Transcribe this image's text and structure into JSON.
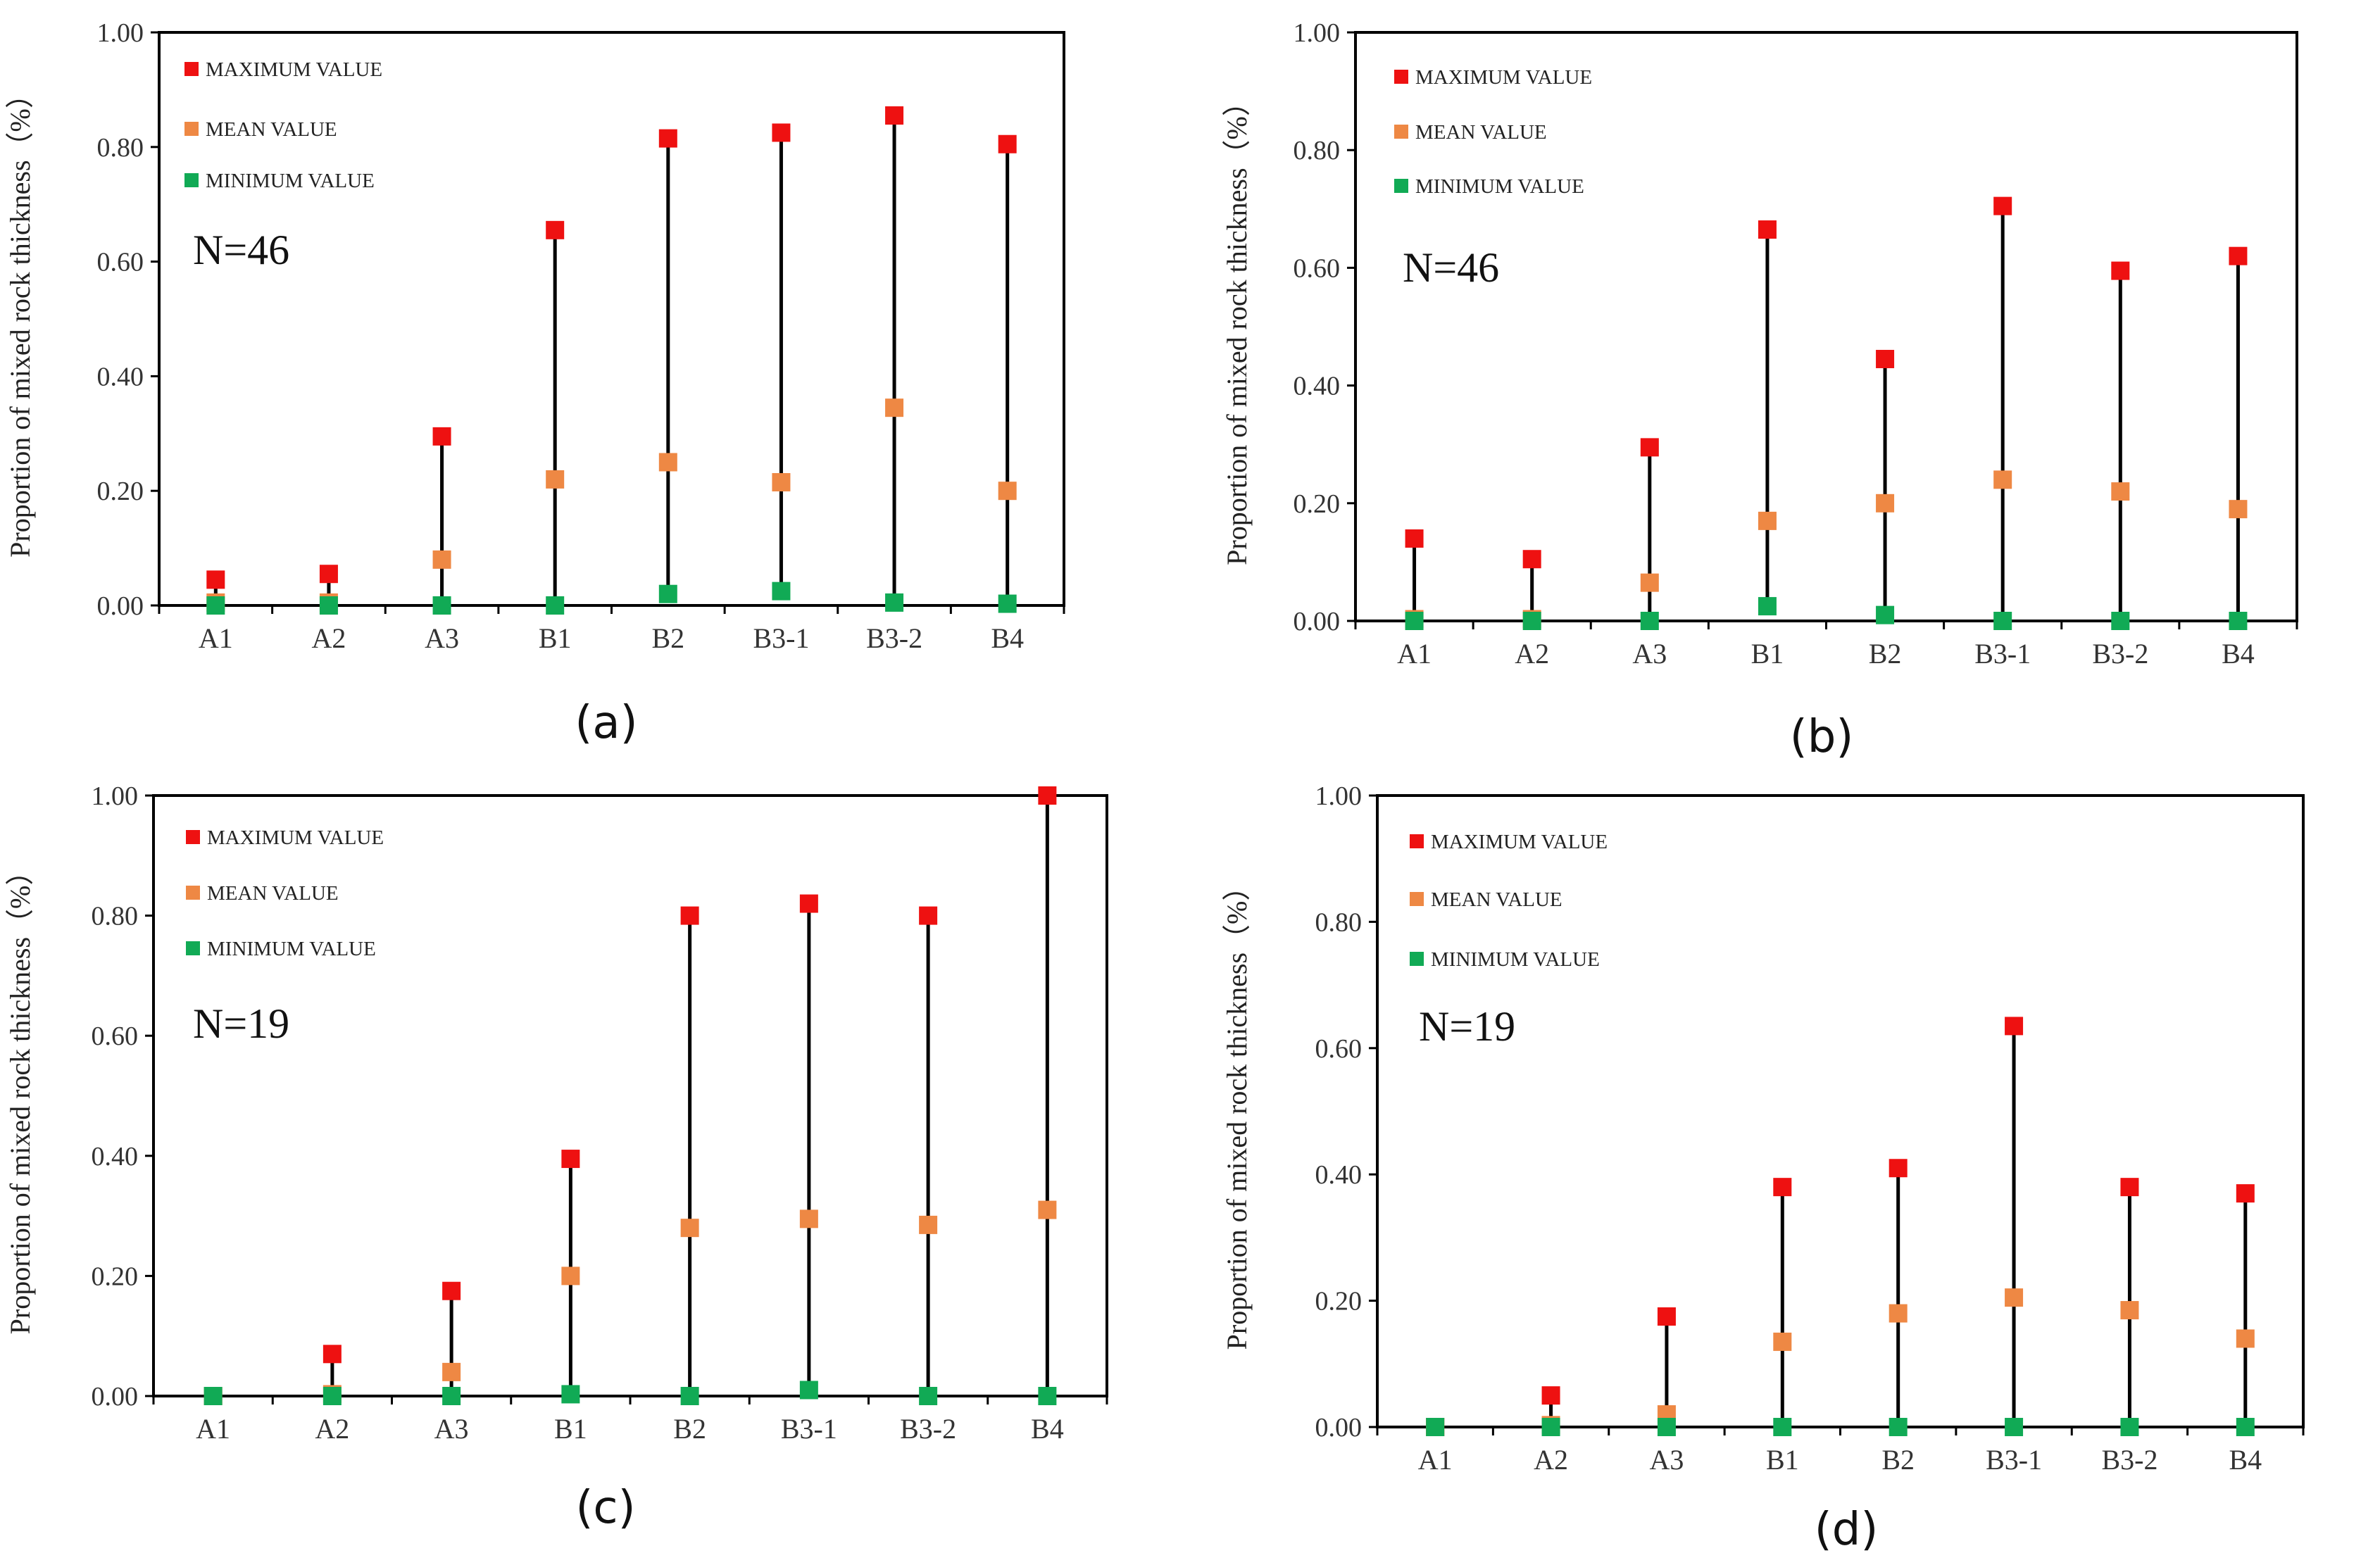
{
  "figure": {
    "colors": {
      "max": "#ee1111",
      "mean": "#ee8844",
      "min": "#11aa55",
      "stem": "#000000"
    }
  },
  "chart_data": [
    {
      "type": "scatter",
      "panel_label": "(a)",
      "annotation": "N=46",
      "ylabel": "Proportion of mixed rock thickness（%）",
      "ylim": [
        0,
        1
      ],
      "yticks": [
        "0.00",
        "0.20",
        "0.40",
        "0.60",
        "0.80",
        "1.00"
      ],
      "categories": [
        "A1",
        "A2",
        "A3",
        "B1",
        "B2",
        "B3-1",
        "B3-2",
        "B4"
      ],
      "series": [
        {
          "name": "MAXIMUM VALUE",
          "values": [
            0.045,
            0.055,
            0.295,
            0.655,
            0.815,
            0.825,
            0.855,
            0.805
          ]
        },
        {
          "name": "MEAN VALUE",
          "values": [
            0.005,
            0.005,
            0.08,
            0.22,
            0.25,
            0.215,
            0.345,
            0.2
          ]
        },
        {
          "name": "MINIMUM VALUE",
          "values": [
            0,
            0,
            0,
            0,
            0.02,
            0.025,
            0.005,
            0.003
          ]
        }
      ]
    },
    {
      "type": "scatter",
      "panel_label": "(b)",
      "annotation": "N=46",
      "ylabel": "Proportion of mixed rock thickness（%）",
      "ylim": [
        0,
        1
      ],
      "yticks": [
        "0.00",
        "0.20",
        "0.40",
        "0.60",
        "0.80",
        "1.00"
      ],
      "categories": [
        "A1",
        "A2",
        "A3",
        "B1",
        "B2",
        "B3-1",
        "B3-2",
        "B4"
      ],
      "series": [
        {
          "name": "MAXIMUM VALUE",
          "values": [
            0.14,
            0.105,
            0.295,
            0.665,
            0.445,
            0.705,
            0.595,
            0.62
          ]
        },
        {
          "name": "MEAN VALUE",
          "values": [
            0.003,
            0.003,
            0.065,
            0.17,
            0.2,
            0.24,
            0.22,
            0.19
          ]
        },
        {
          "name": "MINIMUM VALUE",
          "values": [
            0,
            0,
            0,
            0.025,
            0.01,
            0,
            0,
            0
          ]
        }
      ]
    },
    {
      "type": "scatter",
      "panel_label": "(c)",
      "annotation": "N=19",
      "ylabel": "Proportion of mixed rock thickness（%）",
      "ylim": [
        0,
        1
      ],
      "yticks": [
        "0.00",
        "0.20",
        "0.40",
        "0.60",
        "0.80",
        "1.00"
      ],
      "categories": [
        "A1",
        "A2",
        "A3",
        "B1",
        "B2",
        "B3-1",
        "B3-2",
        "B4"
      ],
      "series": [
        {
          "name": "MAXIMUM VALUE",
          "values": [
            0,
            0.07,
            0.175,
            0.395,
            0.8,
            0.82,
            0.8,
            1.0
          ]
        },
        {
          "name": "MEAN VALUE",
          "values": [
            0,
            0.003,
            0.04,
            0.2,
            0.28,
            0.295,
            0.285,
            0.31
          ]
        },
        {
          "name": "MINIMUM VALUE",
          "values": [
            0,
            0,
            0,
            0.003,
            0,
            0.01,
            0,
            0
          ]
        }
      ]
    },
    {
      "type": "scatter",
      "panel_label": "(d)",
      "annotation": "N=19",
      "ylabel": "Proportion of mixed rock thickness（%）",
      "ylim": [
        0,
        1
      ],
      "yticks": [
        "0.00",
        "0.20",
        "0.40",
        "0.60",
        "0.80",
        "1.00"
      ],
      "categories": [
        "A1",
        "A2",
        "A3",
        "B1",
        "B2",
        "B3-1",
        "B3-2",
        "B4"
      ],
      "series": [
        {
          "name": "MAXIMUM VALUE",
          "values": [
            0,
            0.05,
            0.175,
            0.38,
            0.41,
            0.635,
            0.38,
            0.37
          ]
        },
        {
          "name": "MEAN VALUE",
          "values": [
            0,
            0.003,
            0.02,
            0.135,
            0.18,
            0.205,
            0.185,
            0.14
          ]
        },
        {
          "name": "MINIMUM VALUE",
          "values": [
            0,
            0,
            0,
            0,
            0,
            0,
            0,
            0
          ]
        }
      ]
    }
  ]
}
